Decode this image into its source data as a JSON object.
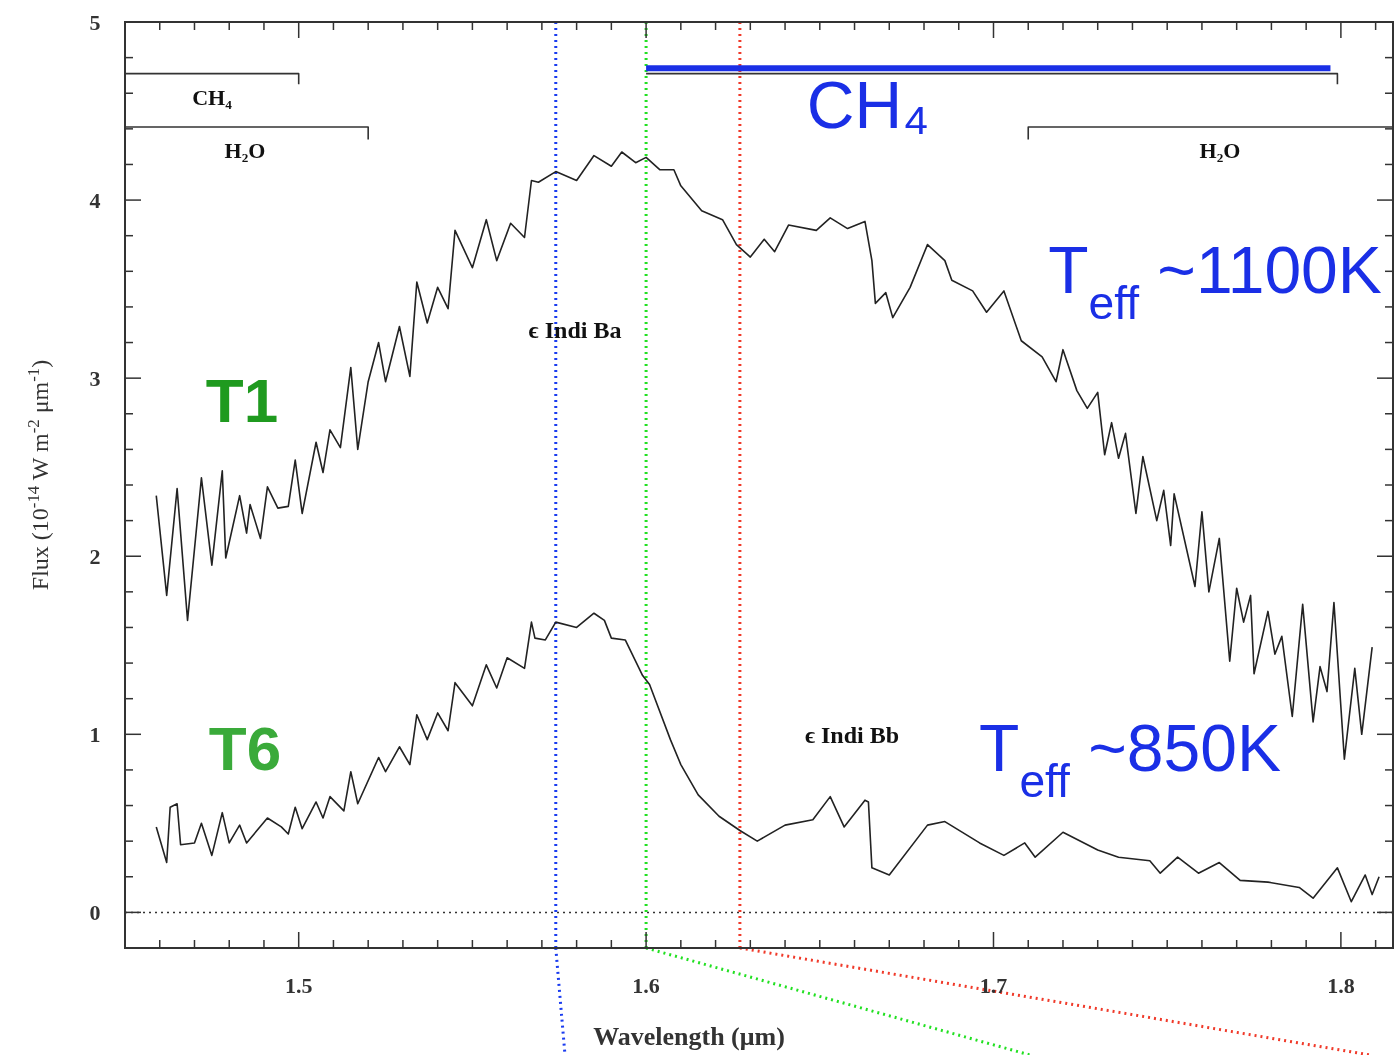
{
  "chart_data": {
    "type": "line",
    "xlabel": "Wavelength (μm)",
    "ylabel": "Flux (10$^{-14}$ W m$^{-2}$ μm$^{-1}$)",
    "xlim": [
      1.45,
      1.815
    ],
    "ylim": [
      -0.2,
      5
    ],
    "xticks": [
      {
        "value": 1.46,
        "label": null
      },
      {
        "value": 1.47,
        "label": null
      },
      {
        "value": 1.48,
        "label": null
      },
      {
        "value": 1.49,
        "label": null
      },
      1.5,
      {
        "value": 1.51,
        "label": null
      },
      {
        "value": 1.52,
        "label": null
      },
      {
        "value": 1.53,
        "label": null
      },
      {
        "value": 1.54,
        "label": null
      },
      {
        "value": 1.55,
        "label": null
      },
      {
        "value": 1.56,
        "label": null
      },
      {
        "value": 1.57,
        "label": null
      },
      {
        "value": 1.58,
        "label": null
      },
      {
        "value": 1.59,
        "label": null
      },
      1.6,
      {
        "value": 1.61,
        "label": null
      },
      {
        "value": 1.62,
        "label": null
      },
      {
        "value": 1.63,
        "label": null
      },
      {
        "value": 1.64,
        "label": null
      },
      {
        "value": 1.65,
        "label": null
      },
      {
        "value": 1.66,
        "label": null
      },
      {
        "value": 1.67,
        "label": null
      },
      {
        "value": 1.68,
        "label": null
      },
      {
        "value": 1.69,
        "label": null
      },
      1.7,
      {
        "value": 1.71,
        "label": null
      },
      {
        "value": 1.72,
        "label": null
      },
      {
        "value": 1.73,
        "label": null
      },
      {
        "value": 1.74,
        "label": null
      },
      {
        "value": 1.75,
        "label": null
      },
      {
        "value": 1.76,
        "label": null
      },
      {
        "value": 1.77,
        "label": null
      },
      {
        "value": 1.78,
        "label": null
      },
      {
        "value": 1.79,
        "label": null
      },
      1.8,
      {
        "value": 1.81,
        "label": null
      }
    ],
    "yticks": [
      0,
      {
        "value": 0.2,
        "label": null
      },
      {
        "value": 0.4,
        "label": null
      },
      {
        "value": 0.6,
        "label": null
      },
      {
        "value": 0.8,
        "label": null
      },
      1,
      {
        "value": 1.2,
        "label": null
      },
      {
        "value": 1.4,
        "label": null
      },
      {
        "value": 1.6,
        "label": null
      },
      {
        "value": 1.8,
        "label": null
      },
      2,
      {
        "value": 2.2,
        "label": null
      },
      {
        "value": 2.4,
        "label": null
      },
      {
        "value": 2.6,
        "label": null
      },
      {
        "value": 2.8,
        "label": null
      },
      3,
      {
        "value": 3.2,
        "label": null
      },
      {
        "value": 3.4,
        "label": null
      },
      {
        "value": 3.6,
        "label": null
      },
      {
        "value": 3.8,
        "label": null
      },
      4,
      {
        "value": 4.2,
        "label": null
      },
      {
        "value": 4.4,
        "label": null
      },
      {
        "value": 4.6,
        "label": null
      },
      {
        "value": 4.8,
        "label": null
      },
      5
    ],
    "grid": false,
    "marker": "none",
    "line_style": "solid",
    "series": [
      {
        "color": "#222222",
        "x": [
          1.459,
          1.462,
          1.465,
          1.468,
          1.472,
          1.475,
          1.478,
          1.479,
          1.483,
          1.485,
          1.486,
          1.489,
          1.491,
          1.494,
          1.497,
          1.499,
          1.501,
          1.505,
          1.507,
          1.509,
          1.512,
          1.515,
          1.517,
          1.52,
          1.523,
          1.525,
          1.529,
          1.532,
          1.534,
          1.537,
          1.54,
          1.543,
          1.545,
          1.55,
          1.554,
          1.557,
          1.561,
          1.565,
          1.567,
          1.569,
          1.574,
          1.58,
          1.585,
          1.59,
          1.593,
          1.597,
          1.6,
          1.604,
          1.608,
          1.61,
          1.616,
          1.622,
          1.626,
          1.63,
          1.634,
          1.637,
          1.641,
          1.649,
          1.653,
          1.658,
          1.663,
          1.665,
          1.666,
          1.669,
          1.671,
          1.676,
          1.681,
          1.686,
          1.688,
          1.694,
          1.698,
          1.703,
          1.708,
          1.714,
          1.718,
          1.72,
          1.724,
          1.727,
          1.73,
          1.732,
          1.734,
          1.736,
          1.738,
          1.741,
          1.743,
          1.747,
          1.749,
          1.751,
          1.752,
          1.758,
          1.76,
          1.762,
          1.765,
          1.768,
          1.77,
          1.772,
          1.774,
          1.775,
          1.779,
          1.781,
          1.783,
          1.786,
          1.789,
          1.792,
          1.794,
          1.796,
          1.798,
          1.801,
          1.804,
          1.806,
          1.809
        ],
        "values": [
          2.34,
          1.78,
          2.38,
          1.64,
          2.44,
          1.95,
          2.48,
          1.99,
          2.34,
          2.13,
          2.29,
          2.1,
          2.39,
          2.27,
          2.28,
          2.54,
          2.24,
          2.64,
          2.47,
          2.71,
          2.61,
          3.06,
          2.6,
          2.98,
          3.2,
          2.98,
          3.29,
          3.01,
          3.54,
          3.31,
          3.51,
          3.39,
          3.83,
          3.62,
          3.89,
          3.66,
          3.87,
          3.79,
          4.11,
          4.1,
          4.16,
          4.11,
          4.25,
          4.19,
          4.27,
          4.21,
          4.24,
          4.17,
          4.17,
          4.08,
          3.94,
          3.89,
          3.75,
          3.68,
          3.78,
          3.71,
          3.86,
          3.83,
          3.9,
          3.84,
          3.88,
          3.66,
          3.42,
          3.48,
          3.34,
          3.51,
          3.75,
          3.66,
          3.55,
          3.49,
          3.37,
          3.49,
          3.21,
          3.12,
          2.98,
          3.16,
          2.93,
          2.83,
          2.92,
          2.57,
          2.75,
          2.55,
          2.69,
          2.24,
          2.56,
          2.2,
          2.37,
          2.06,
          2.35,
          1.83,
          2.25,
          1.8,
          2.1,
          1.41,
          1.82,
          1.63,
          1.78,
          1.34,
          1.69,
          1.45,
          1.55,
          1.1,
          1.73,
          1.07,
          1.38,
          1.24,
          1.74,
          0.86,
          1.37,
          1.0,
          1.49
        ]
      },
      {
        "color": "#222222",
        "x": [
          1.459,
          1.462,
          1.463,
          1.465,
          1.466,
          1.47,
          1.472,
          1.475,
          1.478,
          1.48,
          1.483,
          1.485,
          1.491,
          1.495,
          1.497,
          1.499,
          1.501,
          1.505,
          1.507,
          1.509,
          1.513,
          1.515,
          1.517,
          1.523,
          1.525,
          1.529,
          1.532,
          1.534,
          1.537,
          1.54,
          1.543,
          1.545,
          1.55,
          1.554,
          1.557,
          1.56,
          1.565,
          1.567,
          1.568,
          1.571,
          1.574,
          1.58,
          1.585,
          1.588,
          1.59,
          1.594,
          1.599,
          1.601,
          1.607,
          1.61,
          1.615,
          1.621,
          1.627,
          1.632,
          1.64,
          1.648,
          1.653,
          1.657,
          1.663,
          1.664,
          1.665,
          1.67,
          1.681,
          1.686,
          1.696,
          1.703,
          1.709,
          1.712,
          1.72,
          1.73,
          1.736,
          1.745,
          1.748,
          1.753,
          1.759,
          1.765,
          1.771,
          1.779,
          1.788,
          1.792,
          1.799,
          1.803,
          1.807,
          1.809,
          1.811
        ],
        "values": [
          0.48,
          0.28,
          0.59,
          0.61,
          0.38,
          0.39,
          0.5,
          0.32,
          0.56,
          0.39,
          0.49,
          0.39,
          0.53,
          0.48,
          0.44,
          0.59,
          0.47,
          0.62,
          0.53,
          0.65,
          0.57,
          0.79,
          0.61,
          0.87,
          0.79,
          0.93,
          0.83,
          1.11,
          0.97,
          1.12,
          1.02,
          1.29,
          1.16,
          1.39,
          1.26,
          1.43,
          1.37,
          1.63,
          1.54,
          1.53,
          1.63,
          1.6,
          1.68,
          1.64,
          1.54,
          1.53,
          1.33,
          1.28,
          0.97,
          0.83,
          0.66,
          0.54,
          0.46,
          0.4,
          0.49,
          0.52,
          0.65,
          0.48,
          0.63,
          0.62,
          0.25,
          0.21,
          0.49,
          0.51,
          0.39,
          0.32,
          0.39,
          0.31,
          0.45,
          0.35,
          0.31,
          0.29,
          0.22,
          0.31,
          0.22,
          0.28,
          0.18,
          0.17,
          0.14,
          0.08,
          0.25,
          0.06,
          0.21,
          0.1,
          0.2
        ]
      },
      {
        "color": "#333333",
        "x": [
          1.45,
          1.5,
          1.5
        ],
        "values": [
          4.71,
          4.71,
          4.65
        ]
      },
      {
        "color": "#333333",
        "x": [
          1.45,
          1.52,
          1.52
        ],
        "values": [
          4.41,
          4.41,
          4.34
        ]
      },
      {
        "color": "#333333",
        "x": [
          1.6,
          1.799,
          1.799
        ],
        "values": [
          4.71,
          4.71,
          4.65
        ]
      },
      {
        "color": "#1a2fe6",
        "x": [
          1.6,
          1.797
        ],
        "values": [
          4.74,
          4.74
        ]
      },
      {
        "color": "#333333",
        "x": [
          1.71,
          1.71,
          1.815
        ],
        "values": [
          4.34,
          4.41,
          4.41
        ]
      }
    ],
    "ref_lines": [
      {
        "axis": "y",
        "value": 0,
        "color": "#333333",
        "line_style": "dotted"
      },
      {
        "axis": "x",
        "value": 1.574,
        "color": "#1a3cf0",
        "line_style": "dotted"
      },
      {
        "axis": "x",
        "value": 1.6,
        "color": "#22e022",
        "line_style": "dotted"
      },
      {
        "axis": "x",
        "value": 1.627,
        "color": "#f03a2a",
        "line_style": "dotted"
      }
    ],
    "annotations": [
      "CH₄",
      "H₂O",
      "CH₄",
      "H₂O",
      "ϵ Indi Ba",
      "ϵ Indi Bb",
      "T1",
      "T6",
      "T$_{eff}$ ~1100K",
      "T$_{eff}$ ~850K"
    ]
  }
}
